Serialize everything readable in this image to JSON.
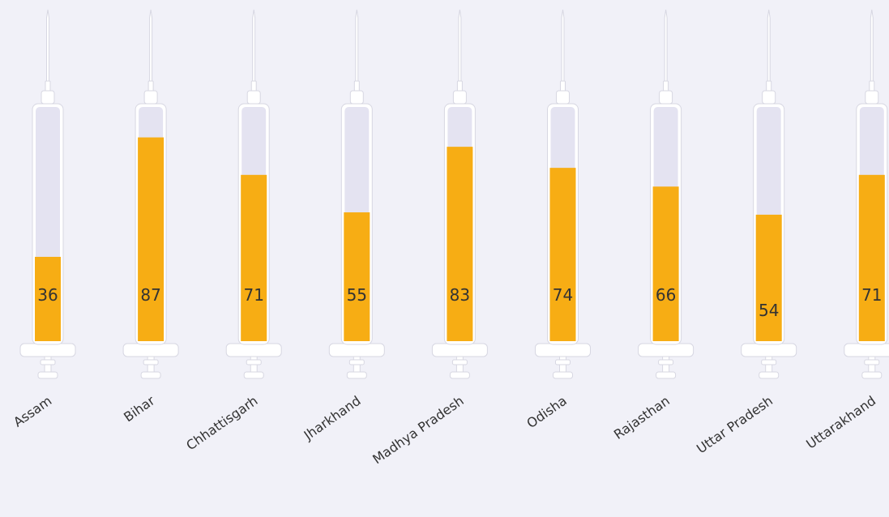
{
  "chart_data": {
    "type": "bar",
    "style": "syringe",
    "categories": [
      "Assam",
      "Bihar",
      "Chhattisgarh",
      "Jharkhand",
      "Madhya Pradesh",
      "Odisha",
      "Rajasthan",
      "Uttar Pradesh",
      "Uttarakhand"
    ],
    "values": [
      36,
      87,
      71,
      55,
      83,
      74,
      66,
      54,
      71
    ],
    "ylim": [
      0,
      100
    ],
    "title": "",
    "xlabel": "",
    "ylabel": "",
    "grid": false,
    "legend": "none",
    "colors": {
      "background": "#f1f1f8",
      "fill": "#f7ad14",
      "barrel_empty": "#e4e3f1",
      "syringe_body": "#ffffff",
      "syringe_outline": "#d7d7e2",
      "label_text": "#333333"
    }
  }
}
